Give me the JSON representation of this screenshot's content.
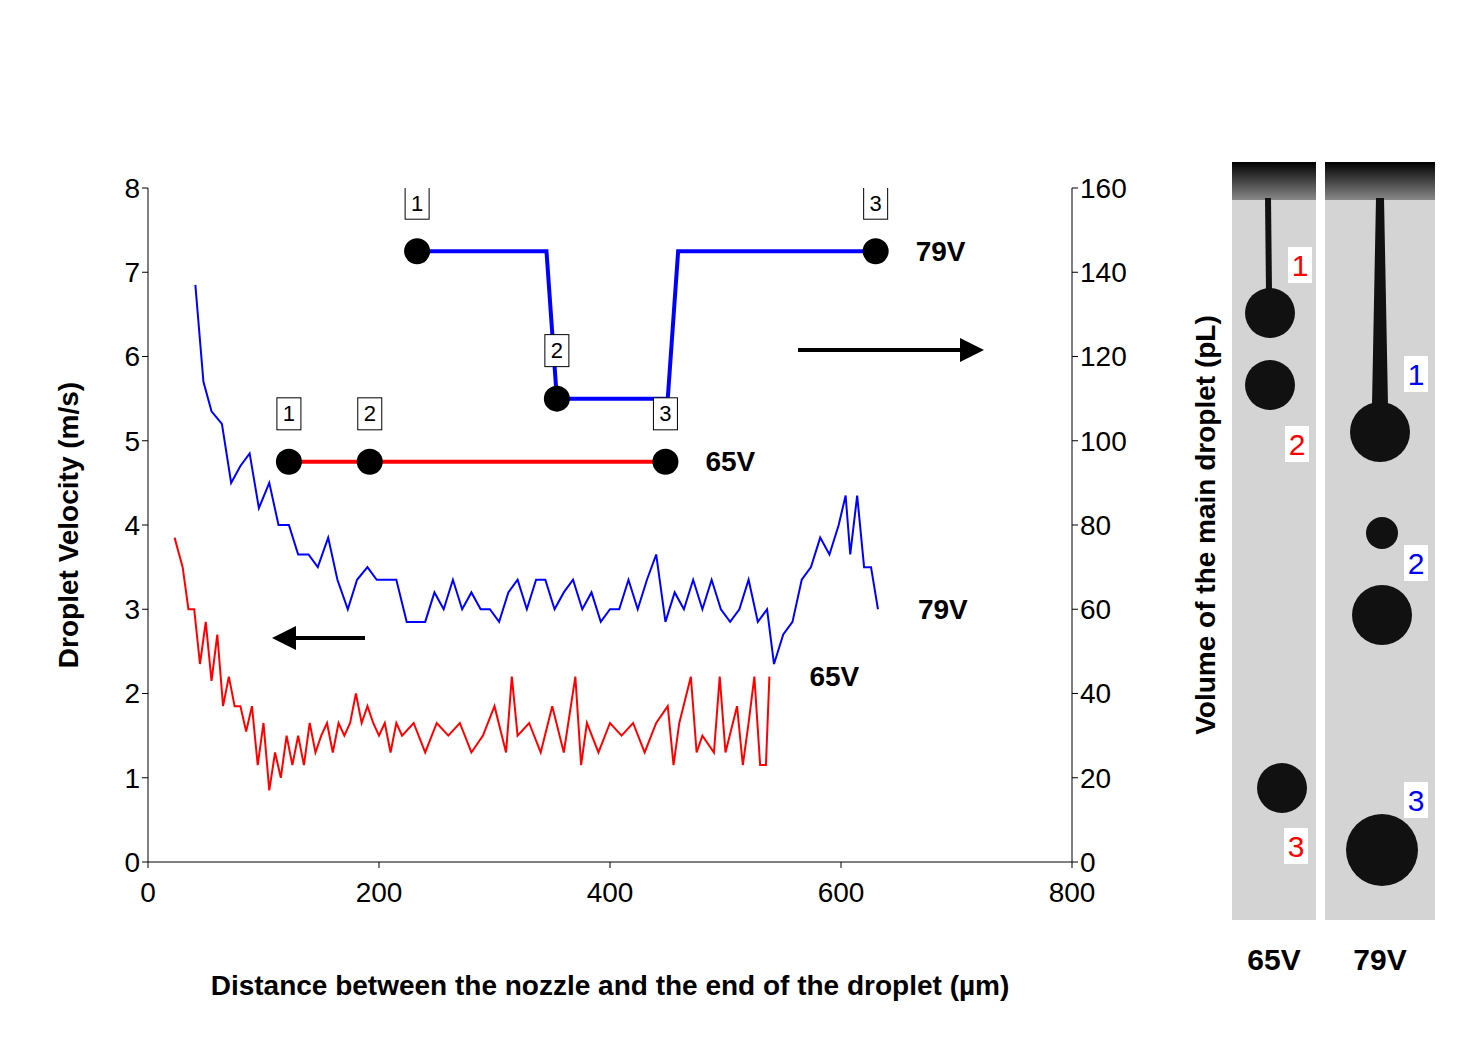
{
  "chart_data": {
    "type": "line",
    "x_label": "Distance between the nozzle and the end of the droplet (µm)",
    "y_label": "Droplet Velocity (m/s)",
    "y2_label": "Volume of the main droplet (pL)",
    "xlim": [
      0,
      800
    ],
    "xticks": [
      0,
      200,
      400,
      600,
      800
    ],
    "ylim": [
      0,
      8
    ],
    "yticks": [
      0,
      1,
      2,
      3,
      4,
      5,
      6,
      7,
      8
    ],
    "y2lim": [
      0,
      160
    ],
    "y2ticks": [
      0,
      20,
      40,
      60,
      80,
      100,
      120,
      140,
      160
    ],
    "grid": false,
    "series": [
      {
        "name": "79V",
        "color": "#0000ff",
        "marker": "none",
        "x": [
          41,
          48,
          55,
          64,
          72,
          80,
          88,
          96,
          105,
          113,
          122,
          130,
          139,
          147,
          156,
          164,
          173,
          181,
          190,
          198,
          207,
          215,
          224,
          232,
          240,
          248,
          256,
          264,
          272,
          280,
          288,
          296,
          304,
          312,
          320,
          328,
          336,
          344,
          352,
          360,
          368,
          376,
          384,
          392,
          400,
          408,
          416,
          424,
          432,
          440,
          448,
          456,
          464,
          472,
          480,
          488,
          496,
          504,
          512,
          520,
          528,
          536,
          542,
          550,
          558,
          566,
          574,
          582,
          590,
          598,
          604,
          608,
          614,
          620,
          626,
          632
        ],
        "values": [
          6.85,
          5.7,
          5.35,
          5.2,
          4.5,
          4.7,
          4.85,
          4.2,
          4.5,
          4.0,
          4.0,
          3.65,
          3.65,
          3.5,
          3.85,
          3.35,
          3.0,
          3.35,
          3.5,
          3.35,
          3.35,
          3.35,
          2.85,
          2.85,
          2.85,
          3.2,
          3.0,
          3.35,
          3.0,
          3.2,
          3.0,
          3.0,
          2.85,
          3.2,
          3.35,
          3.0,
          3.35,
          3.35,
          3.0,
          3.2,
          3.35,
          3.0,
          3.2,
          2.85,
          3.0,
          3.0,
          3.35,
          3.0,
          3.35,
          3.65,
          2.85,
          3.2,
          3.0,
          3.35,
          3.0,
          3.35,
          3.0,
          2.85,
          3.0,
          3.35,
          2.85,
          3.0,
          2.35,
          2.7,
          2.85,
          3.35,
          3.5,
          3.85,
          3.65,
          4.0,
          4.35,
          3.65,
          4.35,
          3.5,
          3.5,
          3.0
        ]
      },
      {
        "name": "65V",
        "color": "#ff0000",
        "marker": "none",
        "x": [
          23,
          30,
          35,
          40,
          45,
          50,
          55,
          60,
          65,
          70,
          75,
          80,
          85,
          90,
          95,
          100,
          105,
          110,
          115,
          120,
          125,
          130,
          135,
          140,
          145,
          150,
          155,
          160,
          165,
          170,
          175,
          180,
          185,
          190,
          195,
          200,
          205,
          210,
          215,
          220,
          230,
          240,
          250,
          260,
          270,
          280,
          290,
          300,
          310,
          315,
          320,
          330,
          340,
          350,
          360,
          370,
          375,
          380,
          390,
          400,
          410,
          420,
          430,
          440,
          450,
          455,
          460,
          470,
          475,
          480,
          490,
          495,
          500,
          510,
          515,
          520,
          525,
          530,
          535,
          538
        ],
        "values": [
          3.85,
          3.5,
          3.0,
          3.0,
          2.35,
          2.85,
          2.15,
          2.7,
          1.85,
          2.2,
          1.85,
          1.85,
          1.55,
          1.85,
          1.15,
          1.65,
          0.85,
          1.3,
          1.0,
          1.5,
          1.15,
          1.5,
          1.15,
          1.65,
          1.3,
          1.5,
          1.65,
          1.3,
          1.65,
          1.5,
          1.65,
          2.0,
          1.65,
          1.85,
          1.65,
          1.5,
          1.65,
          1.3,
          1.65,
          1.5,
          1.65,
          1.3,
          1.65,
          1.5,
          1.65,
          1.3,
          1.5,
          1.85,
          1.3,
          2.2,
          1.5,
          1.65,
          1.3,
          1.85,
          1.3,
          2.2,
          1.15,
          1.65,
          1.3,
          1.65,
          1.5,
          1.65,
          1.3,
          1.65,
          1.85,
          1.15,
          1.65,
          2.2,
          1.3,
          1.5,
          1.3,
          2.2,
          1.3,
          1.85,
          1.15,
          1.65,
          2.2,
          1.15,
          1.15,
          2.2
        ]
      },
      {
        "name": "79V",
        "color": "#0000ff",
        "axis": "y2",
        "marker": "circle",
        "x": [
          233,
          345,
          354,
          450,
          459,
          630
        ],
        "values": [
          145,
          145,
          110,
          110,
          145,
          145
        ],
        "point_labels": [
          "1",
          null,
          "2",
          null,
          null,
          "3"
        ]
      },
      {
        "name": "65V",
        "color": "#ff0000",
        "axis": "y2",
        "marker": "circle",
        "x": [
          122,
          192,
          448
        ],
        "values": [
          95,
          95,
          95
        ],
        "point_labels": [
          "1",
          "2",
          "3"
        ]
      }
    ]
  },
  "photo": {
    "panels": [
      {
        "caption": "65V",
        "label_color": "#ff0000",
        "labels": [
          "1",
          "2",
          "3"
        ]
      },
      {
        "caption": "79V",
        "label_color": "#0000ff",
        "labels": [
          "1",
          "2",
          "3"
        ]
      }
    ]
  }
}
